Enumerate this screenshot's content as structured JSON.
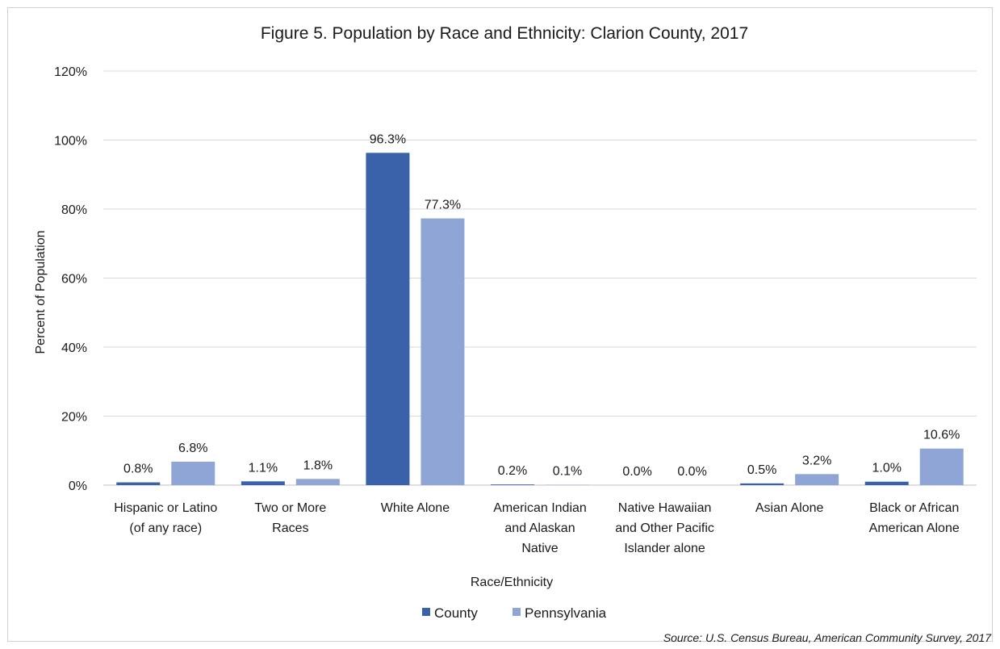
{
  "chart_data": {
    "type": "bar",
    "title": "Figure 5. Population by Race and Ethnicity: Clarion County, 2017",
    "xlabel": "Race/Ethnicity",
    "ylabel": "Percent of Population",
    "ylim": [
      0,
      120
    ],
    "yticks": [
      "0%",
      "20%",
      "40%",
      "60%",
      "80%",
      "100%",
      "120%"
    ],
    "yticks_values": [
      0,
      20,
      40,
      60,
      80,
      100,
      120
    ],
    "grid": true,
    "legend_position": "bottom",
    "categories": [
      [
        "Hispanic or Latino",
        "(of any race)"
      ],
      [
        "Two or More",
        "Races"
      ],
      [
        "White Alone"
      ],
      [
        "American Indian",
        "and Alaskan",
        "Native"
      ],
      [
        "Native Hawaiian",
        "and Other Pacific",
        "Islander alone"
      ],
      [
        "Asian Alone"
      ],
      [
        "Black or African",
        "American Alone"
      ]
    ],
    "series": [
      {
        "name": "County",
        "color": "#3a62ab",
        "values": [
          0.8,
          1.1,
          96.3,
          0.2,
          0.0,
          0.5,
          1.0
        ],
        "labels": [
          "0.8%",
          "1.1%",
          "96.3%",
          "0.2%",
          "0.0%",
          "0.5%",
          "1.0%"
        ]
      },
      {
        "name": "Pennsylvania",
        "color": "#8fa5d6",
        "values": [
          6.8,
          1.8,
          77.3,
          0.1,
          0.0,
          3.2,
          10.6
        ],
        "labels": [
          "6.8%",
          "1.8%",
          "77.3%",
          "0.1%",
          "0.0%",
          "3.2%",
          "10.6%"
        ]
      }
    ],
    "source": "Source: U.S. Census Bureau, American Community Survey, 2017"
  }
}
